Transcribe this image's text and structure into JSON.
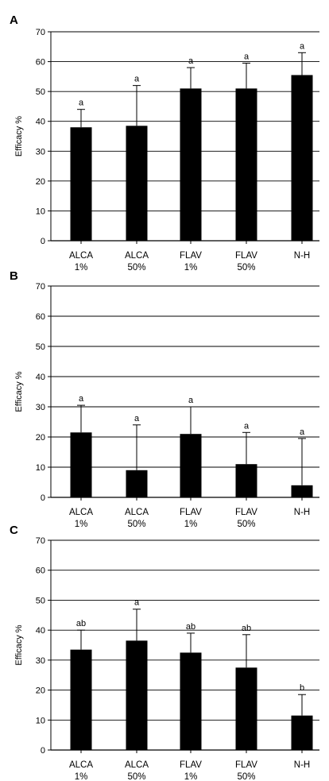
{
  "colors": {
    "bar": "#000000",
    "grid": "#000000",
    "background": "#ffffff"
  },
  "chart_data": [
    {
      "type": "bar",
      "panel_label": "A",
      "categories": [
        "ALCA 1%",
        "ALCA 50%",
        "FLAV 1%",
        "FLAV 50%",
        "N-H"
      ],
      "category_lines": [
        [
          "ALCA",
          "1%"
        ],
        [
          "ALCA",
          "50%"
        ],
        [
          "FLAV",
          "1%"
        ],
        [
          "FLAV",
          "50%"
        ],
        [
          "N-H",
          ""
        ]
      ],
      "values": [
        38,
        38.5,
        51,
        51,
        55.5
      ],
      "error_upper": [
        6,
        13.5,
        7,
        8.5,
        7.5
      ],
      "significance_letters": [
        "a",
        "a",
        "a",
        "a",
        "a"
      ],
      "ylabel": "Efficacy %",
      "ylim": [
        0,
        70
      ],
      "yticks": [
        0,
        10,
        20,
        30,
        40,
        50,
        60,
        70
      ],
      "grid": true
    },
    {
      "type": "bar",
      "panel_label": "B",
      "categories": [
        "ALCA 1%",
        "ALCA 50%",
        "FLAV 1%",
        "FLAV 50%",
        "N-H"
      ],
      "category_lines": [
        [
          "ALCA",
          "1%"
        ],
        [
          "ALCA",
          "50%"
        ],
        [
          "FLAV",
          "1%"
        ],
        [
          "FLAV",
          "50%"
        ],
        [
          "N-H",
          ""
        ]
      ],
      "values": [
        21.5,
        9,
        21,
        11,
        4
      ],
      "error_upper": [
        9,
        15,
        9,
        10.5,
        15.5
      ],
      "significance_letters": [
        "a",
        "a",
        "a",
        "a",
        "a"
      ],
      "ylabel": "Efficacy %",
      "ylim": [
        0,
        70
      ],
      "yticks": [
        0,
        10,
        20,
        30,
        40,
        50,
        60,
        70
      ],
      "grid": true
    },
    {
      "type": "bar",
      "panel_label": "C",
      "categories": [
        "ALCA 1%",
        "ALCA 50%",
        "FLAV 1%",
        "FLAV 50%",
        "N-H"
      ],
      "category_lines": [
        [
          "ALCA",
          "1%"
        ],
        [
          "ALCA",
          "50%"
        ],
        [
          "FLAV",
          "1%"
        ],
        [
          "FLAV",
          "50%"
        ],
        [
          "N-H",
          ""
        ]
      ],
      "values": [
        33.5,
        36.5,
        32.5,
        27.5,
        11.5
      ],
      "error_upper": [
        6.5,
        10.5,
        6.5,
        11,
        7
      ],
      "significance_letters": [
        "ab",
        "a",
        "ab",
        "ab",
        "b"
      ],
      "ylabel": "Efficacy %",
      "ylim": [
        0,
        70
      ],
      "yticks": [
        0,
        10,
        20,
        30,
        40,
        50,
        60,
        70
      ],
      "grid": true
    }
  ]
}
